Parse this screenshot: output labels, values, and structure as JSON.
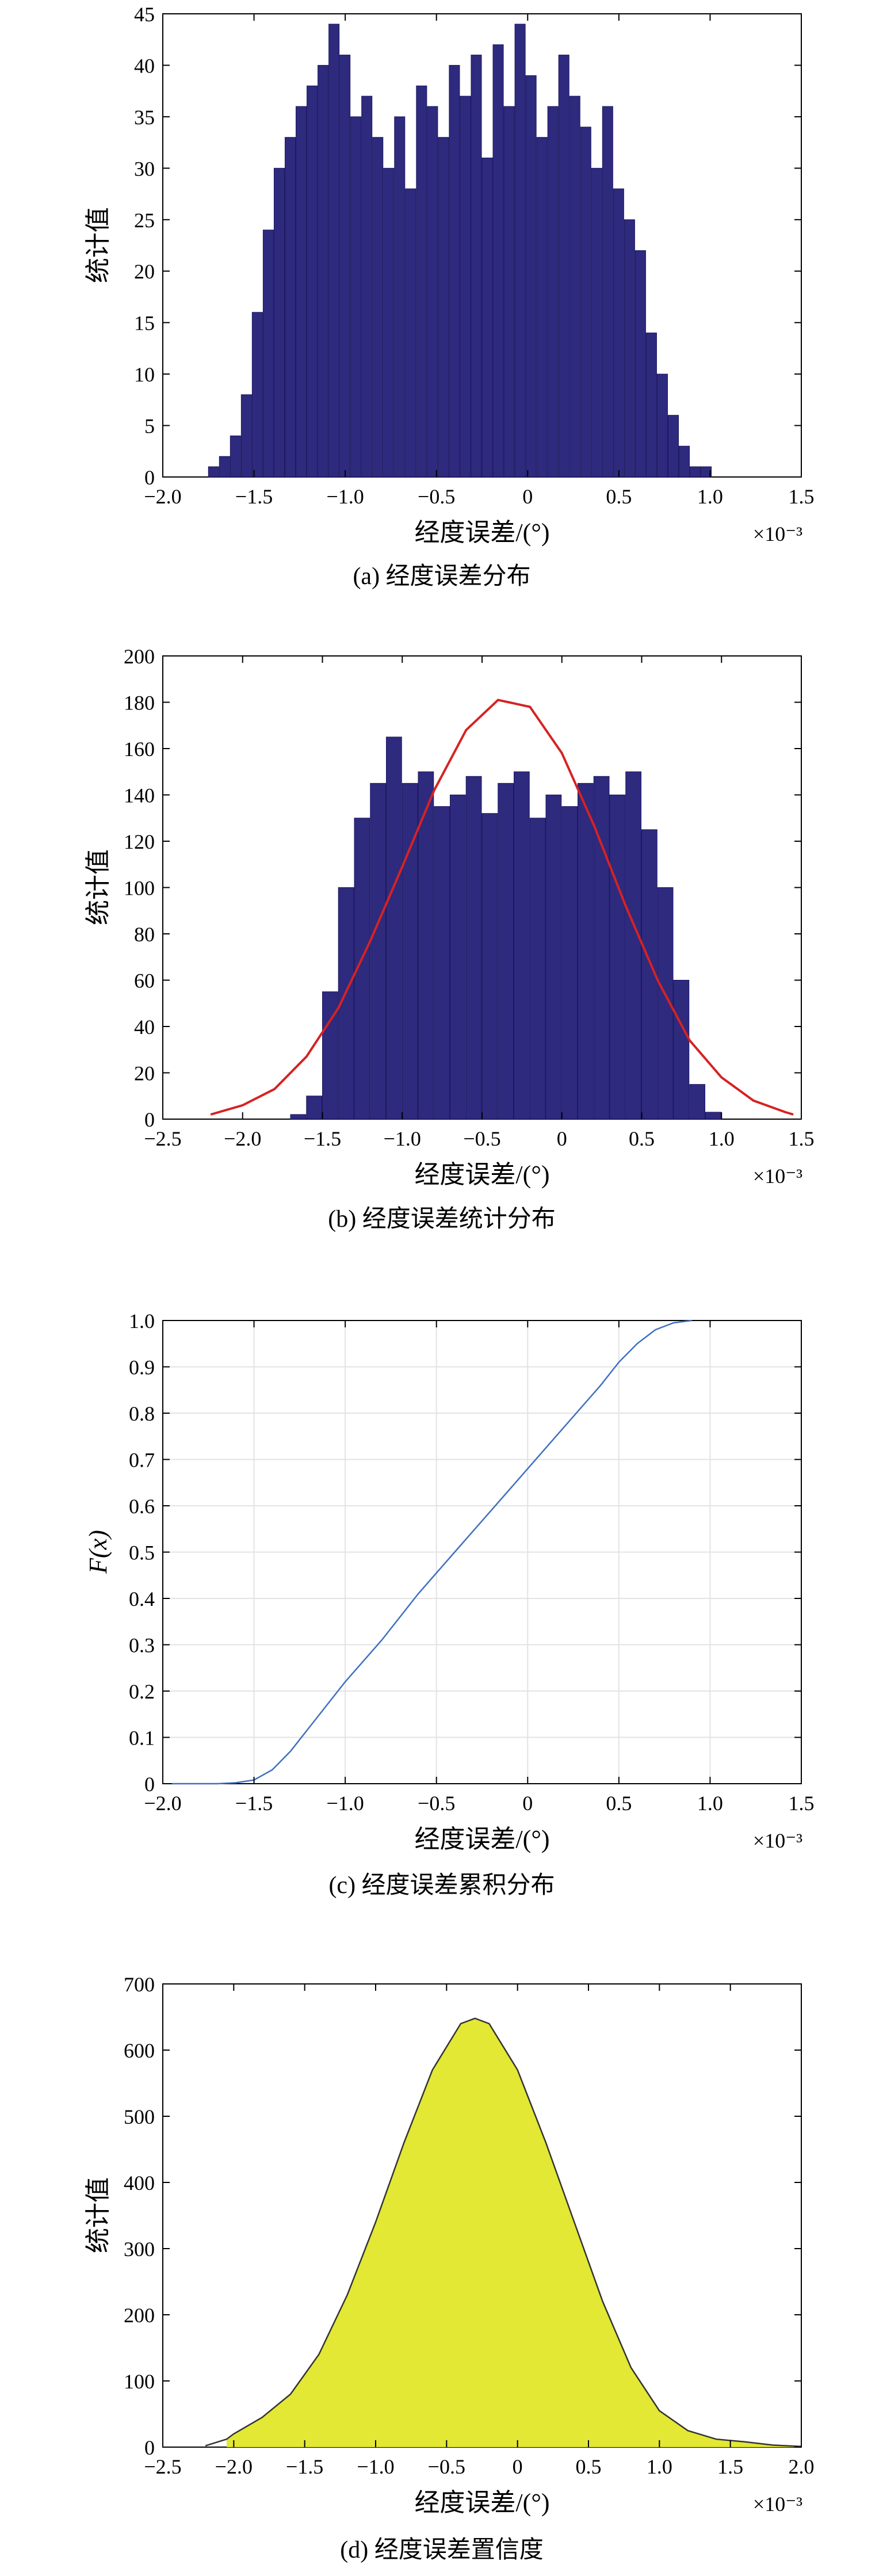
{
  "charts": [
    {
      "caption": "(a) 经度误差分布",
      "xlabel": "经度误差/(°)",
      "ylabel": "统计值",
      "x_multiplier": "×10⁻³",
      "xticks": [
        "−2.0",
        "−1.5",
        "−1.0",
        "−0.5",
        "0",
        "0.5",
        "1.0",
        "1.5"
      ],
      "yticks": [
        "0",
        "5",
        "10",
        "15",
        "20",
        "25",
        "30",
        "35",
        "40",
        "45"
      ]
    },
    {
      "caption": "(b) 经度误差统计分布",
      "xlabel": "经度误差/(°)",
      "ylabel": "统计值",
      "x_multiplier": "×10⁻³",
      "xticks": [
        "−2.5",
        "−2.0",
        "−1.5",
        "−1.0",
        "−0.5",
        "0",
        "0.5",
        "1.0",
        "1.5"
      ],
      "yticks": [
        "0",
        "20",
        "40",
        "60",
        "80",
        "100",
        "120",
        "140",
        "160",
        "180",
        "200"
      ]
    },
    {
      "caption": "(c) 经度误差累积分布",
      "xlabel": "经度误差/(°)",
      "ylabel": "F(x)",
      "x_multiplier": "×10⁻³",
      "xticks": [
        "−2.0",
        "−1.5",
        "−1.0",
        "−0.5",
        "0",
        "0.5",
        "1.0",
        "1.5"
      ],
      "yticks": [
        "0",
        "0.1",
        "0.2",
        "0.3",
        "0.4",
        "0.5",
        "0.6",
        "0.7",
        "0.8",
        "0.9",
        "1.0"
      ]
    },
    {
      "caption": "(d) 经度误差置信度",
      "xlabel": "经度误差/(°)",
      "ylabel": "统计值",
      "x_multiplier": "×10⁻³",
      "xticks": [
        "−2.5",
        "−2.0",
        "−1.5",
        "−1.0",
        "−0.5",
        "0",
        "0.5",
        "1.0",
        "1.5",
        "2.0"
      ],
      "yticks": [
        "0",
        "100",
        "200",
        "300",
        "400",
        "500",
        "600",
        "700"
      ]
    }
  ],
  "chart_data": [
    {
      "type": "bar",
      "x_unit_scale": 0.001,
      "xlim": [
        -2.0,
        1.5
      ],
      "ylim": [
        0,
        45
      ],
      "grid": false,
      "bar_color": "#2e2a7e",
      "x": [
        -1.72,
        -1.66,
        -1.6,
        -1.54,
        -1.48,
        -1.42,
        -1.36,
        -1.3,
        -1.24,
        -1.18,
        -1.12,
        -1.06,
        -1.0,
        -0.94,
        -0.88,
        -0.82,
        -0.76,
        -0.7,
        -0.64,
        -0.58,
        -0.52,
        -0.46,
        -0.4,
        -0.34,
        -0.28,
        -0.22,
        -0.16,
        -0.1,
        -0.04,
        0.02,
        0.08,
        0.14,
        0.2,
        0.26,
        0.32,
        0.38,
        0.44,
        0.5,
        0.56,
        0.62,
        0.68,
        0.74,
        0.8,
        0.86,
        0.92,
        0.98
      ],
      "values": [
        1,
        2,
        4,
        8,
        16,
        24,
        30,
        33,
        36,
        38,
        40,
        44,
        41,
        35,
        37,
        33,
        30,
        35,
        28,
        38,
        36,
        33,
        40,
        37,
        41,
        31,
        42,
        36,
        44,
        39,
        33,
        36,
        41,
        37,
        34,
        30,
        36,
        28,
        25,
        22,
        14,
        10,
        6,
        3,
        1,
        1
      ]
    },
    {
      "type": "bar",
      "x_unit_scale": 0.001,
      "xlim": [
        -2.5,
        1.5
      ],
      "ylim": [
        0,
        200
      ],
      "grid": false,
      "bar_color": "#2e2a7e",
      "x": [
        -1.65,
        -1.55,
        -1.45,
        -1.35,
        -1.25,
        -1.15,
        -1.05,
        -0.95,
        -0.85,
        -0.75,
        -0.65,
        -0.55,
        -0.45,
        -0.35,
        -0.25,
        -0.15,
        -0.05,
        0.05,
        0.15,
        0.25,
        0.35,
        0.45,
        0.55,
        0.65,
        0.75,
        0.85,
        0.95
      ],
      "values": [
        2,
        10,
        55,
        100,
        130,
        145,
        165,
        145,
        150,
        135,
        140,
        148,
        132,
        145,
        150,
        130,
        140,
        135,
        145,
        148,
        140,
        150,
        125,
        100,
        60,
        15,
        3
      ],
      "fit_curve": {
        "name": "normal fit",
        "color": "#d62222",
        "x": [
          -2.2,
          -2.0,
          -1.8,
          -1.6,
          -1.4,
          -1.2,
          -1.0,
          -0.8,
          -0.6,
          -0.4,
          -0.2,
          0.0,
          0.2,
          0.4,
          0.6,
          0.8,
          1.0,
          1.2,
          1.4,
          1.45
        ],
        "y": [
          2,
          6,
          13,
          27,
          48,
          77,
          109,
          142,
          168,
          181,
          178,
          158,
          127,
          92,
          60,
          34,
          18,
          8,
          3,
          2
        ]
      }
    },
    {
      "type": "line",
      "x_unit_scale": 0.001,
      "xlim": [
        -2.0,
        1.5
      ],
      "ylim": [
        0,
        1.0
      ],
      "grid": true,
      "line_color": "#3f6fbf",
      "x": [
        -1.95,
        -1.7,
        -1.6,
        -1.5,
        -1.4,
        -1.3,
        -1.2,
        -1.1,
        -1.0,
        -0.8,
        -0.6,
        -0.4,
        -0.2,
        0.0,
        0.2,
        0.4,
        0.5,
        0.6,
        0.7,
        0.8,
        0.9
      ],
      "y": [
        0.0,
        0.0,
        0.002,
        0.008,
        0.03,
        0.07,
        0.12,
        0.17,
        0.22,
        0.31,
        0.41,
        0.5,
        0.59,
        0.68,
        0.77,
        0.86,
        0.91,
        0.95,
        0.98,
        0.995,
        1.0
      ]
    },
    {
      "type": "area",
      "x_unit_scale": 0.001,
      "xlim": [
        -2.5,
        2.0
      ],
      "ylim": [
        0,
        700
      ],
      "grid": false,
      "fill_color": "#e2e833",
      "line_color": "#333333",
      "x": [
        -2.2,
        -2.05,
        -2.0,
        -1.8,
        -1.6,
        -1.4,
        -1.2,
        -1.0,
        -0.8,
        -0.6,
        -0.4,
        -0.3,
        -0.2,
        0.0,
        0.2,
        0.4,
        0.6,
        0.8,
        1.0,
        1.2,
        1.4,
        1.6,
        1.8,
        2.0
      ],
      "y": [
        2,
        12,
        20,
        45,
        80,
        140,
        230,
        340,
        460,
        570,
        640,
        648,
        640,
        570,
        460,
        340,
        220,
        120,
        55,
        25,
        12,
        8,
        3,
        1
      ],
      "fill_from": -2.05
    }
  ]
}
